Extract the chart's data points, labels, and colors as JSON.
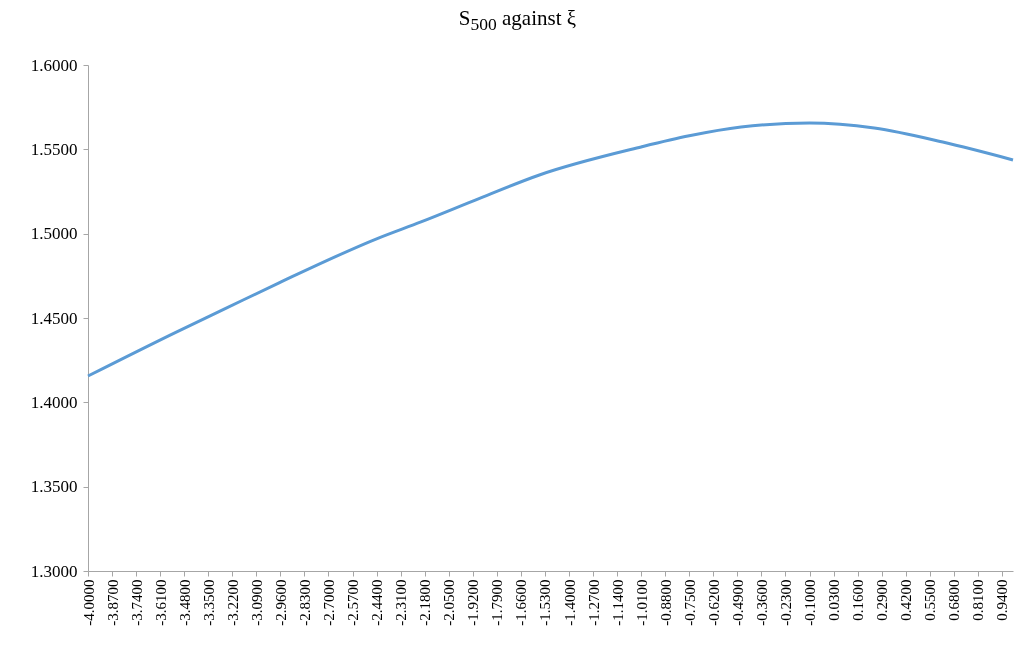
{
  "chart_data": {
    "type": "line",
    "title": "S$_{500}$ against ξ",
    "x": [
      -4,
      -3.52,
      -3.25,
      -2.97,
      -2.43,
      -2.2,
      -1.88,
      -1.56,
      -1.01,
      -0.75,
      -0.47,
      -0.1,
      0.25,
      0.62,
      1
    ],
    "series": [
      {
        "color": "#5b9bd5",
        "values": [
          1.4156,
          1.4418,
          1.456,
          1.4707,
          1.4974,
          1.507,
          1.5211,
          1.5348,
          1.5514,
          1.558,
          1.5632,
          1.5656,
          1.5626,
          1.5543,
          1.5437
        ]
      }
    ],
    "xlim": [
      -4,
      1
    ],
    "xticks": [
      {
        "value": -4,
        "label": "-4.0000"
      },
      {
        "value": -3.87,
        "label": "-3.8700"
      },
      {
        "value": -3.74,
        "label": "-3.7400"
      },
      {
        "value": -3.61,
        "label": "-3.6100"
      },
      {
        "value": -3.48,
        "label": "-3.4800"
      },
      {
        "value": -3.35,
        "label": "-3.3500"
      },
      {
        "value": -3.22,
        "label": "-3.2200"
      },
      {
        "value": -3.09,
        "label": "-3.0900"
      },
      {
        "value": -2.96,
        "label": "-2.9600"
      },
      {
        "value": -2.83,
        "label": "-2.8300"
      },
      {
        "value": -2.7,
        "label": "-2.7000"
      },
      {
        "value": -2.57,
        "label": "-2.5700"
      },
      {
        "value": -2.44,
        "label": "-2.4400"
      },
      {
        "value": -2.31,
        "label": "-2.3100"
      },
      {
        "value": -2.18,
        "label": "-2.1800"
      },
      {
        "value": -2.05,
        "label": "-2.0500"
      },
      {
        "value": -1.92,
        "label": "-1.9200"
      },
      {
        "value": -1.79,
        "label": "-1.7900"
      },
      {
        "value": -1.66,
        "label": "-1.6600"
      },
      {
        "value": -1.53,
        "label": "-1.5300"
      },
      {
        "value": -1.4,
        "label": "-1.4000"
      },
      {
        "value": -1.27,
        "label": "-1.2700"
      },
      {
        "value": -1.14,
        "label": "-1.1400"
      },
      {
        "value": -1.01,
        "label": "-1.0100"
      },
      {
        "value": -0.88,
        "label": "-0.8800"
      },
      {
        "value": -0.75,
        "label": "-0.7500"
      },
      {
        "value": -0.62,
        "label": "-0.6200"
      },
      {
        "value": -0.49,
        "label": "-0.4900"
      },
      {
        "value": -0.36,
        "label": "-0.3600"
      },
      {
        "value": -0.23,
        "label": "-0.2300"
      },
      {
        "value": -0.1,
        "label": "-0.1000"
      },
      {
        "value": 0.03,
        "label": "0.0300"
      },
      {
        "value": 0.16,
        "label": "0.1600"
      },
      {
        "value": 0.29,
        "label": "0.2900"
      },
      {
        "value": 0.42,
        "label": "0.4200"
      },
      {
        "value": 0.55,
        "label": "0.5500"
      },
      {
        "value": 0.68,
        "label": "0.6800"
      },
      {
        "value": 0.81,
        "label": "0.8100"
      },
      {
        "value": 0.94,
        "label": "0.9400"
      }
    ],
    "ylim": [
      1.3,
      1.6
    ],
    "yticks": [
      {
        "value": 1.3,
        "label": "1.3000"
      },
      {
        "value": 1.35,
        "label": "1.3500"
      },
      {
        "value": 1.4,
        "label": "1.4000"
      },
      {
        "value": 1.45,
        "label": "1.4500"
      },
      {
        "value": 1.5,
        "label": "1.5000"
      },
      {
        "value": 1.55,
        "label": "1.5500"
      },
      {
        "value": 1.6,
        "label": "1.6000"
      }
    ],
    "grid": false,
    "marker": "none",
    "line_style": "solid"
  }
}
